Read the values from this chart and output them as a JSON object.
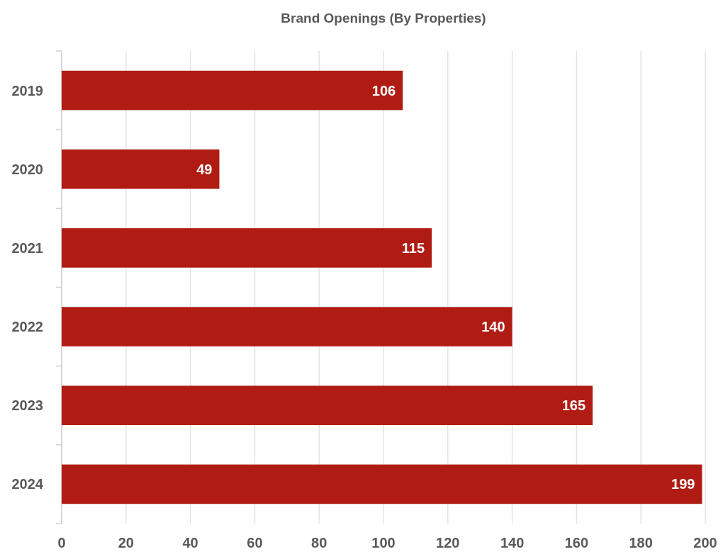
{
  "chart_data": {
    "type": "bar",
    "title": "Brand Openings (By Properties)",
    "orientation": "horizontal",
    "categories": [
      "2019",
      "2020",
      "2021",
      "2022",
      "2023",
      "2024"
    ],
    "values": [
      106,
      49,
      115,
      140,
      165,
      199
    ],
    "color": "#b01c14",
    "xlim": [
      0,
      200
    ],
    "xticks": [
      0,
      20,
      40,
      60,
      80,
      100,
      120,
      140,
      160,
      180,
      200
    ],
    "grid": "x",
    "data_labels": true
  }
}
